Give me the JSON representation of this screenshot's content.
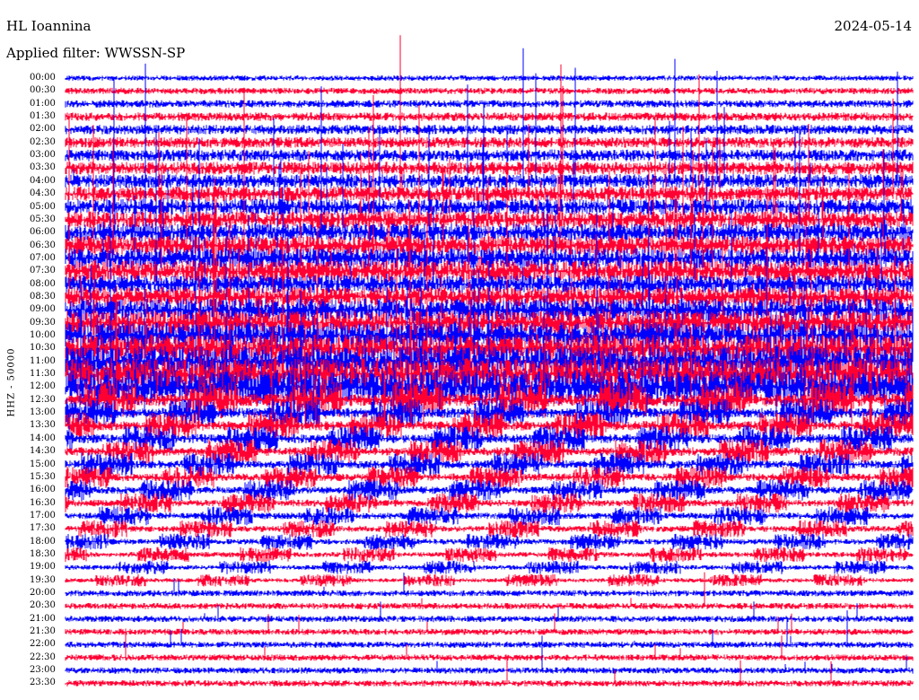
{
  "header": {
    "station": "HL Ioannina",
    "date": "2024-05-14",
    "filter": "Applied filter: WWSSN-SP"
  },
  "chart_data": {
    "type": "line",
    "ylabel": "HHZ - 50000",
    "row_labels": [
      "00:00",
      "00:30",
      "01:00",
      "01:30",
      "02:00",
      "02:30",
      "03:00",
      "03:30",
      "04:00",
      "04:30",
      "05:00",
      "05:30",
      "06:00",
      "06:30",
      "07:00",
      "07:30",
      "08:00",
      "08:30",
      "09:00",
      "09:30",
      "10:00",
      "10:30",
      "11:00",
      "11:30",
      "12:00",
      "12:30",
      "13:00",
      "13:30",
      "14:00",
      "14:30",
      "15:00",
      "15:30",
      "16:00",
      "16:30",
      "17:00",
      "17:30",
      "18:00",
      "18:30",
      "19:00",
      "19:30",
      "20:00",
      "20:30",
      "21:00",
      "21:30",
      "22:00",
      "22:30",
      "23:00",
      "23:30"
    ],
    "series_colors": [
      "#0000ff",
      "#ff0033"
    ],
    "grid": false,
    "legend": "none"
  }
}
